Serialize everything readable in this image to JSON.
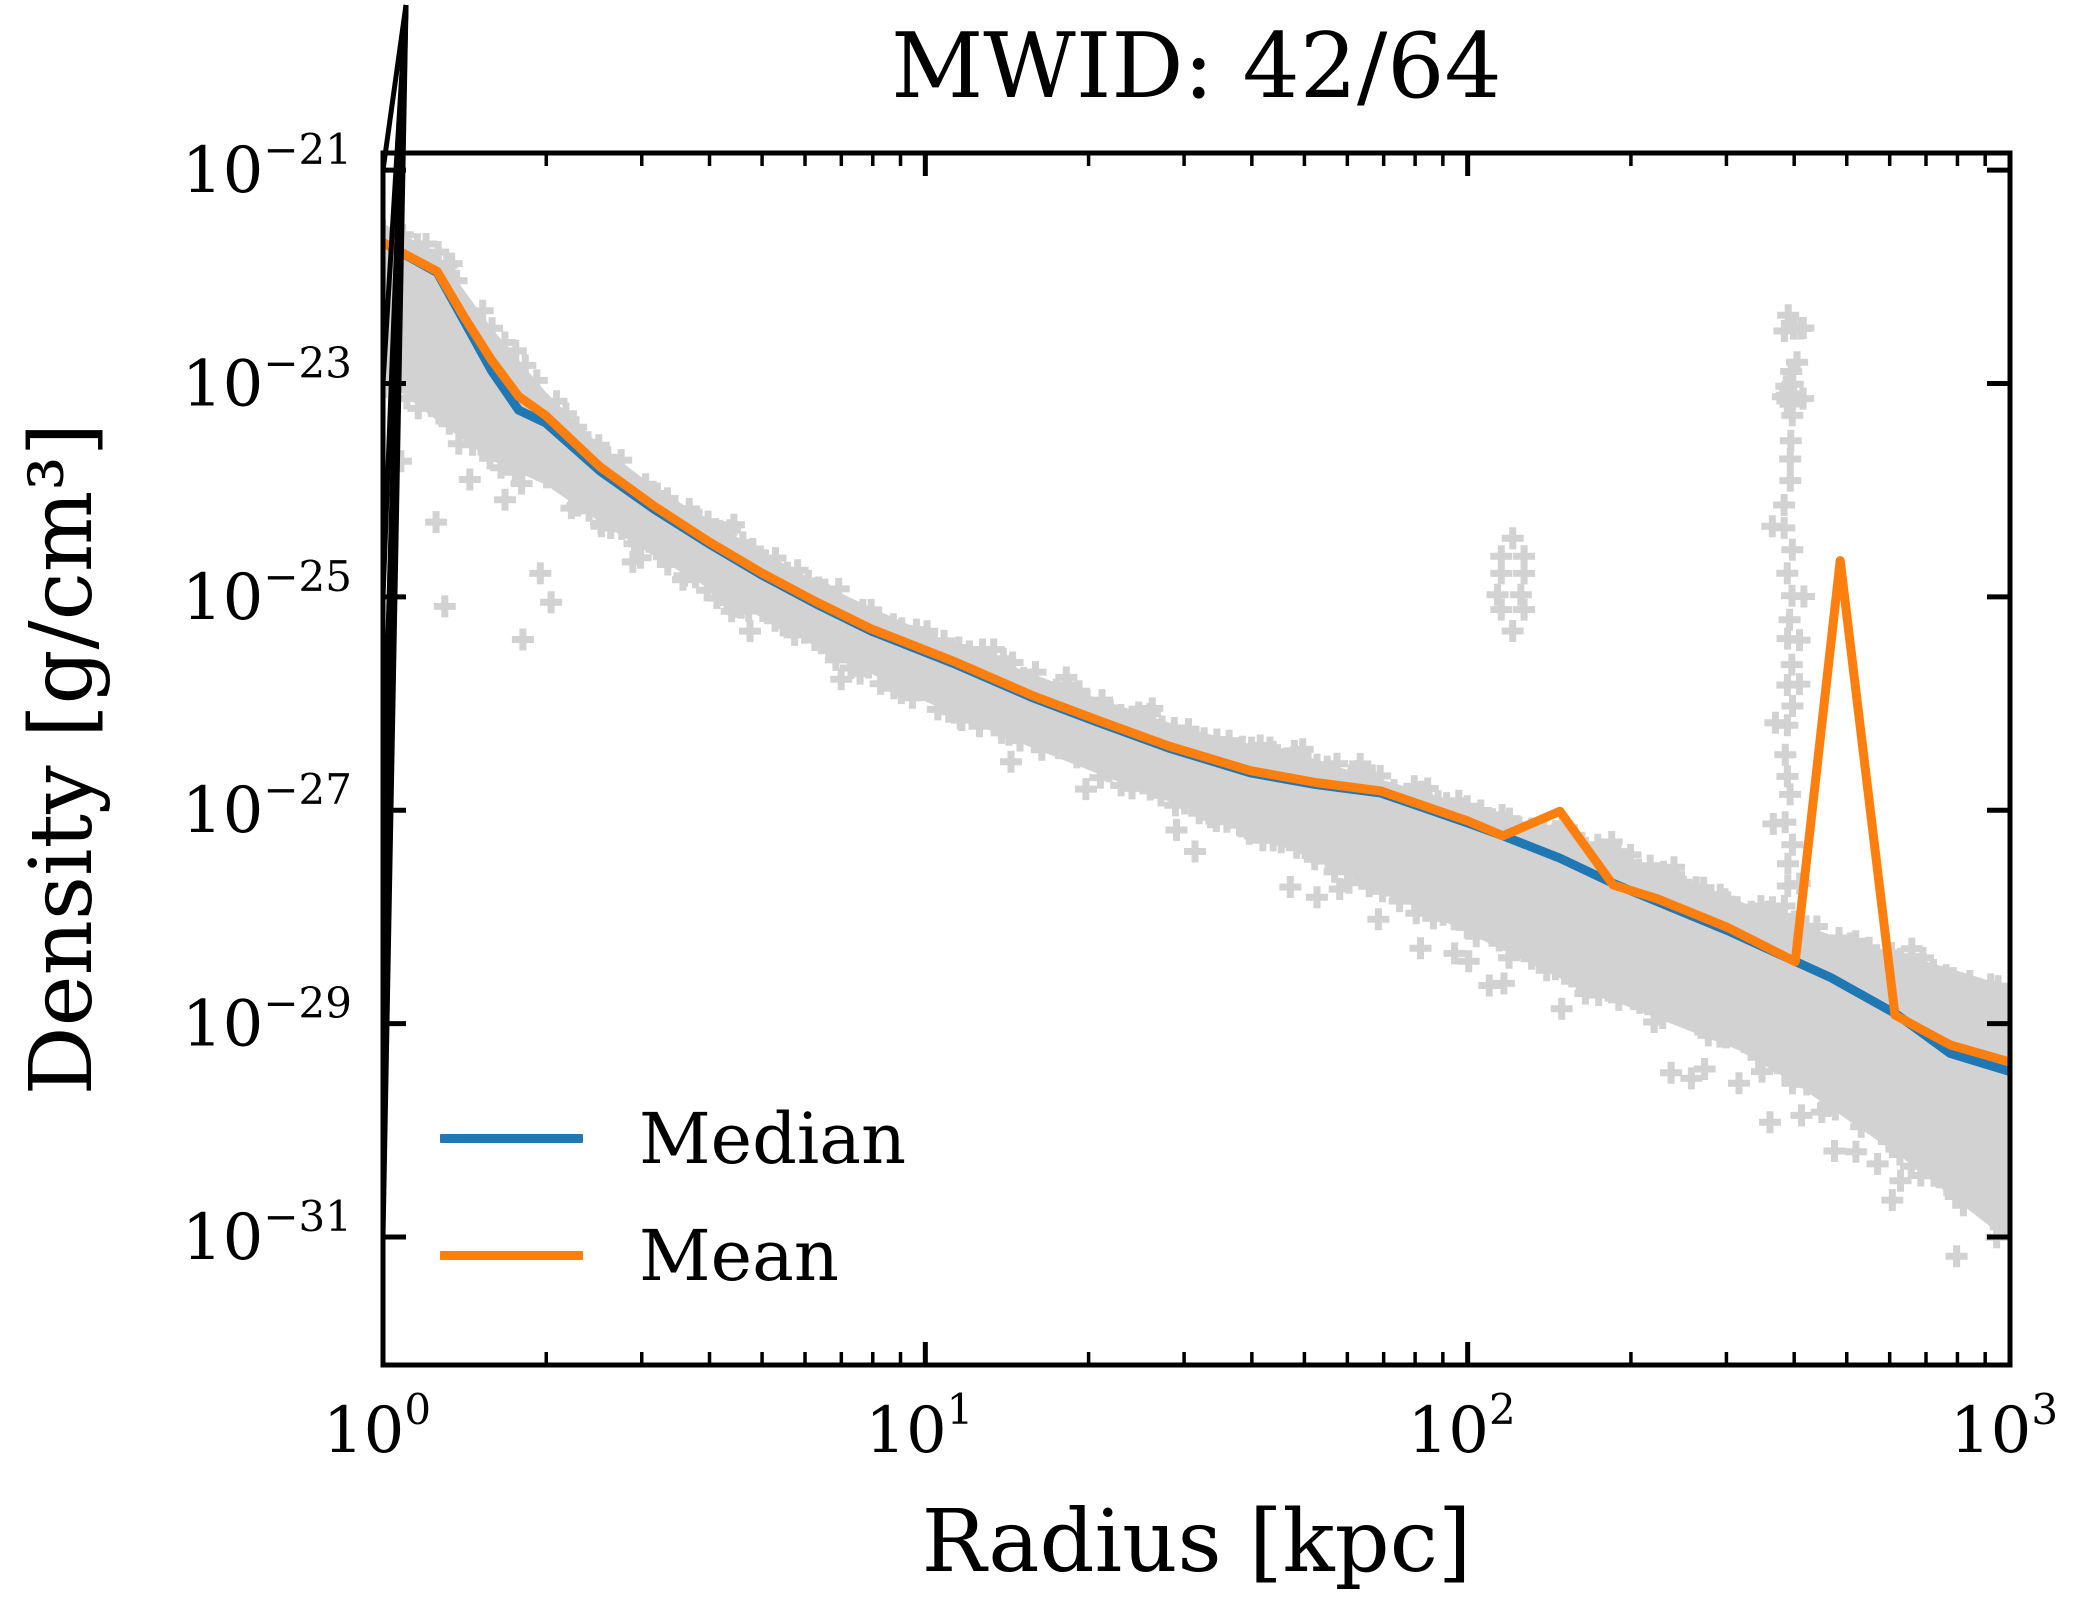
{
  "chart_data": {
    "type": "line",
    "title": "MWID: 42/64",
    "xlabel": "Radius [kpc]",
    "ylabel": "Density [g/cm³]",
    "x_axis": {
      "scale": "log",
      "lim_log10": [
        0,
        3
      ],
      "tick_exponents": [
        0,
        1,
        2,
        3
      ],
      "minor_ticks": true
    },
    "y_axis": {
      "scale": "log",
      "lim_exponent": [
        -32.2,
        -20.84
      ],
      "tick_exponents": [
        -21,
        -23,
        -25,
        -27,
        -29,
        -31
      ],
      "minor_ticks": false
    },
    "grid": false,
    "legend_position": "lower left",
    "colors": {
      "median": "#1f77b4",
      "mean": "#ff7f0e",
      "scatter": "#d2d2d2",
      "axis": "#000000"
    },
    "series": [
      {
        "name": "Median",
        "color_key": "median",
        "points_log10": [
          [
            0.0,
            -21.68
          ],
          [
            0.1,
            -21.96
          ],
          [
            0.15,
            -22.42
          ],
          [
            0.2,
            -22.88
          ],
          [
            0.25,
            -23.25
          ],
          [
            0.3,
            -23.37
          ],
          [
            0.4,
            -23.82
          ],
          [
            0.5,
            -24.18
          ],
          [
            0.6,
            -24.5
          ],
          [
            0.7,
            -24.8
          ],
          [
            0.8,
            -25.07
          ],
          [
            0.9,
            -25.32
          ],
          [
            1.05,
            -25.62
          ],
          [
            1.2,
            -25.95
          ],
          [
            1.32,
            -26.18
          ],
          [
            1.45,
            -26.42
          ],
          [
            1.6,
            -26.65
          ],
          [
            1.72,
            -26.76
          ],
          [
            1.84,
            -26.84
          ],
          [
            2.0,
            -27.12
          ],
          [
            2.065,
            -27.24
          ],
          [
            2.17,
            -27.45
          ],
          [
            2.27,
            -27.69
          ],
          [
            2.48,
            -28.13
          ],
          [
            2.67,
            -28.57
          ],
          [
            2.79,
            -28.91
          ],
          [
            2.89,
            -29.28
          ],
          [
            3.0,
            -29.45
          ]
        ]
      },
      {
        "name": "Mean",
        "color_key": "mean",
        "points_log10": [
          [
            0.0,
            -21.68
          ],
          [
            0.1,
            -21.95
          ],
          [
            0.15,
            -22.38
          ],
          [
            0.2,
            -22.78
          ],
          [
            0.25,
            -23.12
          ],
          [
            0.3,
            -23.3
          ],
          [
            0.4,
            -23.78
          ],
          [
            0.5,
            -24.15
          ],
          [
            0.6,
            -24.48
          ],
          [
            0.7,
            -24.78
          ],
          [
            0.8,
            -25.05
          ],
          [
            0.9,
            -25.3
          ],
          [
            1.05,
            -25.6
          ],
          [
            1.2,
            -25.93
          ],
          [
            1.32,
            -26.16
          ],
          [
            1.45,
            -26.4
          ],
          [
            1.6,
            -26.63
          ],
          [
            1.72,
            -26.74
          ],
          [
            1.84,
            -26.82
          ],
          [
            2.0,
            -27.1
          ],
          [
            2.065,
            -27.24
          ],
          [
            2.17,
            -27.01
          ],
          [
            2.268,
            -27.7
          ],
          [
            2.35,
            -27.83
          ],
          [
            2.48,
            -28.1
          ],
          [
            2.604,
            -28.42
          ],
          [
            2.687,
            -24.66
          ],
          [
            2.788,
            -28.92
          ],
          [
            2.89,
            -29.2
          ],
          [
            3.0,
            -29.36
          ]
        ]
      }
    ],
    "scatter_band": {
      "marker": "plus",
      "marker_size_px": 22,
      "edges_log10": [
        [
          0.0,
          -21.5,
          -22.95
        ],
        [
          0.1,
          -21.78,
          -23.35
        ],
        [
          0.2,
          -22.48,
          -23.72
        ],
        [
          0.3,
          -23.08,
          -23.95
        ],
        [
          0.4,
          -23.58,
          -24.3
        ],
        [
          0.5,
          -23.97,
          -24.62
        ],
        [
          0.6,
          -24.28,
          -24.92
        ],
        [
          0.7,
          -24.58,
          -25.2
        ],
        [
          0.8,
          -24.86,
          -25.47
        ],
        [
          0.9,
          -25.1,
          -25.72
        ],
        [
          1.0,
          -25.33,
          -25.98
        ],
        [
          1.15,
          -25.63,
          -26.32
        ],
        [
          1.3,
          -25.92,
          -26.62
        ],
        [
          1.45,
          -26.18,
          -26.92
        ],
        [
          1.6,
          -26.4,
          -27.22
        ],
        [
          1.75,
          -26.58,
          -27.53
        ],
        [
          1.9,
          -26.8,
          -27.9
        ],
        [
          2.0,
          -26.95,
          -28.15
        ],
        [
          2.1,
          -27.1,
          -28.4
        ],
        [
          2.2,
          -27.25,
          -28.65
        ],
        [
          2.35,
          -27.55,
          -28.95
        ],
        [
          2.5,
          -27.85,
          -29.25
        ],
        [
          2.6,
          -28.05,
          -29.55
        ],
        [
          2.7,
          -28.22,
          -29.9
        ],
        [
          2.8,
          -28.35,
          -30.25
        ],
        [
          2.9,
          -28.5,
          -30.65
        ],
        [
          3.0,
          -28.66,
          -31.05
        ]
      ],
      "extra_points_log10": [
        [
          0.033,
          -23.73
        ],
        [
          0.098,
          -24.3
        ],
        [
          0.114,
          -25.09
        ],
        [
          0.16,
          -23.9
        ],
        [
          0.225,
          -24.09
        ],
        [
          0.258,
          -25.4
        ],
        [
          0.29,
          -24.78
        ],
        [
          0.31,
          -25.05
        ]
      ],
      "outlier_column": {
        "log10_r": 2.591,
        "stem_exponent_range": [
          -28.55,
          -23.3
        ],
        "dense_blob_exponent_range": [
          -23.25,
          -22.45
        ],
        "tip_exponent": -22.36,
        "stem_count": 26,
        "blob_count": 16
      },
      "outlier_cluster_points_log10": [
        [
          2.083,
          -24.45
        ],
        [
          2.062,
          -24.62
        ],
        [
          2.104,
          -24.62
        ],
        [
          2.062,
          -24.78
        ],
        [
          2.104,
          -24.78
        ],
        [
          2.055,
          -24.98
        ],
        [
          2.098,
          -24.98
        ],
        [
          2.062,
          -25.12
        ],
        [
          2.104,
          -25.12
        ],
        [
          2.083,
          -25.32
        ]
      ],
      "random_seed": 42
    }
  }
}
